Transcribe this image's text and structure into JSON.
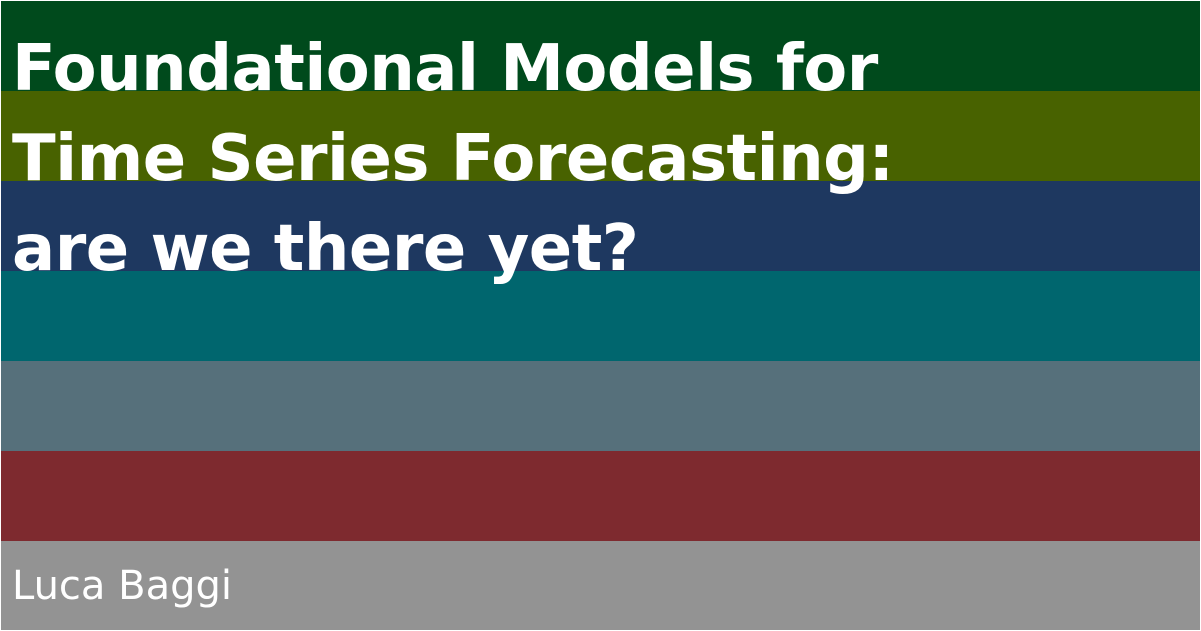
{
  "title": {
    "lines": [
      "Foundational Models for",
      "Time Series Forecasting:",
      "are we there yet?"
    ]
  },
  "author": "Luca Baggi",
  "stripe_colors": [
    "#004a1c",
    "#486200",
    "#1e3860",
    "#00666e",
    "#56707b",
    "#7e2a2f",
    "#939393"
  ]
}
